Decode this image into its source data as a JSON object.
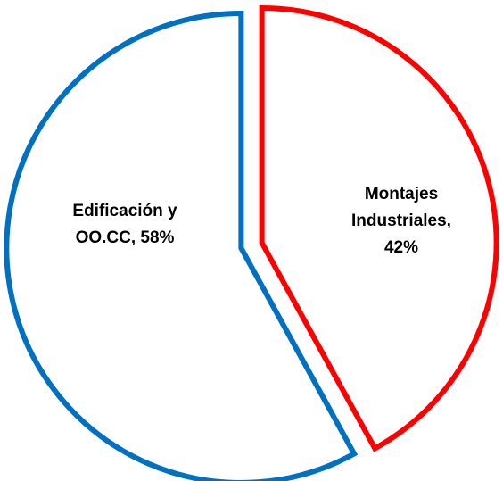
{
  "chart_data": {
    "type": "pie",
    "title": "",
    "slices": [
      {
        "label": "Montajes Industriales",
        "value": 42,
        "display_lines": [
          "Montajes",
          "Industriales,",
          "42%"
        ],
        "color": "#ff0000"
      },
      {
        "label": "Edificación y OO.CC",
        "value": 58,
        "display_lines": [
          "Edificación y",
          "OO.CC, 58%"
        ],
        "color": "#0070c0"
      }
    ],
    "exploded": true,
    "fill": "#ffffff",
    "legend": "none"
  }
}
